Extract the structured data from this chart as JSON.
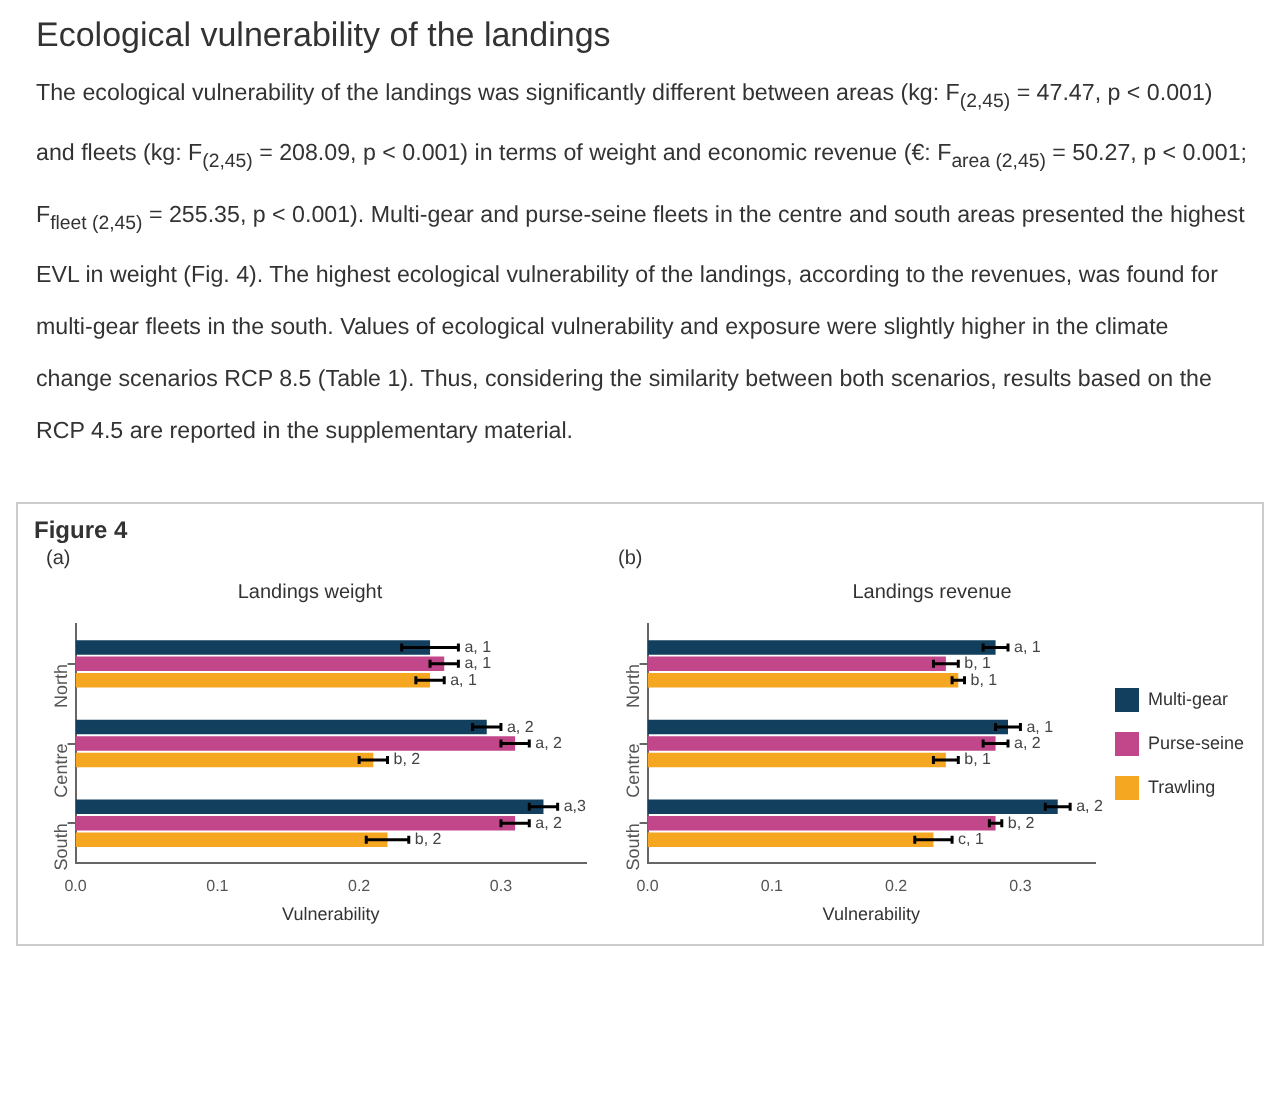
{
  "chart_data": [
    {
      "type": "bar",
      "orientation": "horizontal",
      "title": "Landings weight",
      "xlabel": "Vulnerability",
      "annotations": [
        "Ecological vulnerability of the landings",
        "The ecological vulnerability of the landings was significantly different between areas (kg: F$_{(2,45)}$ = 47.47, p < 0.001) and fleets (kg: F$_{(2,45)}$ = 208.09, p < 0.001) in terms of weight and economic revenue (€: F$_{area (2,45)}$ = 50.27, p < 0.001; F$_{fleet (2,45)}$ = 255.35, p < 0.001). Multi-gear and purse-seine fleets in the centre and south areas presented the highest EVL in weight (Fig. 4). The highest ecological vulnerability of the landings, according to the revenues, was found for multi-gear fleets in the south. Values of ecological vulnerability and exposure were slightly higher in the climate change scenarios RCP 8.5 (Table 1). Thus, considering the similarity between both scenarios, results based on the RCP 4.5 are reported in the supplementary material.",
        "Figure 4",
        "(a)",
        "a, 1",
        "a, 1",
        "a, 1",
        "a, 2",
        "a, 2",
        "b, 2",
        "a,3",
        "a, 2",
        "b, 2"
      ],
      "categories": [
        "North",
        "Centre",
        "South"
      ],
      "series": [
        {
          "color": "#123f5e",
          "values": [
            0.25,
            0.29,
            0.33
          ],
          "errors": [
            0.02,
            0.01,
            0.01
          ]
        },
        {
          "color": "#c2468a",
          "values": [
            0.26,
            0.31,
            0.31
          ],
          "errors": [
            0.01,
            0.01,
            0.01
          ]
        },
        {
          "color": "#f6a722",
          "values": [
            0.25,
            0.21,
            0.22
          ],
          "errors": [
            0.01,
            0.01,
            0.015
          ]
        }
      ],
      "xlim": [
        0,
        0.36
      ],
      "xticks": [
        {
          "value": 0,
          "label": "0.0"
        },
        0.1,
        0.2,
        0.3
      ],
      "grid": false,
      "legend": false
    },
    {
      "type": "bar",
      "orientation": "horizontal",
      "title": "Landings revenue",
      "xlabel": "Vulnerability",
      "annotations": [
        "(b)",
        "a, 1",
        "b, 1",
        "b, 1",
        "a, 1",
        "a, 2",
        "b, 1",
        "a, 2",
        "b, 2",
        "c, 1"
      ],
      "categories": [
        "North",
        "Centre",
        "South"
      ],
      "series": [
        {
          "name": "Multi-gear",
          "color": "#123f5e",
          "values": [
            0.28,
            0.29,
            0.33
          ],
          "errors": [
            0.01,
            0.01,
            0.01
          ]
        },
        {
          "name": "Purse-seine",
          "color": "#c2468a",
          "values": [
            0.24,
            0.28,
            0.28
          ],
          "errors": [
            0.01,
            0.01,
            0.005
          ]
        },
        {
          "name": "Trawling",
          "color": "#f6a722",
          "values": [
            0.25,
            0.24,
            0.23
          ],
          "errors": [
            0.005,
            0.01,
            0.015
          ]
        }
      ],
      "xlim": [
        0,
        0.36
      ],
      "xticks": [
        {
          "value": 0,
          "label": "0.0"
        },
        0.1,
        0.2,
        0.3
      ],
      "grid": false,
      "legend": "right"
    }
  ]
}
